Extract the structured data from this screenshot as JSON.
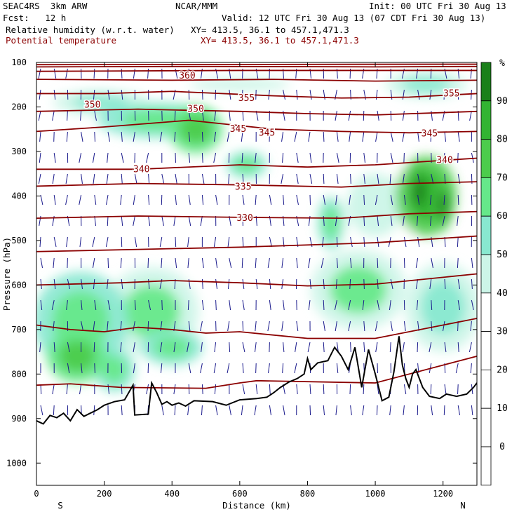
{
  "header": {
    "model": "SEAC4RS  3km ARW",
    "center": "NCAR/MMM",
    "init": "Init: 00 UTC Fri 30 Aug 13",
    "fcst": "Fcst:   12 h",
    "valid": "Valid: 12 UTC Fri 30 Aug 13 (07 CDT Fri 30 Aug 13)",
    "field1": "Relative humidity (w.r.t. water)",
    "field1_xy": "XY= 413.5, 36.1 to 457.1,471.3",
    "field2": "Potential temperature",
    "field2_xy": "XY= 413.5, 36.1 to 457.1,471.3"
  },
  "colors": {
    "theta": "#8b0000",
    "terrain": "#000000",
    "wind": "#1a1a8c",
    "rh_scale": [
      "#ffffff",
      "#ffffff",
      "#ffffff",
      "#ffffff",
      "#ccf5e8",
      "#88e8d0",
      "#66e88a",
      "#4ccc4c",
      "#32b432",
      "#1a801a"
    ]
  },
  "chart_data": {
    "type": "heatmap",
    "title": "Relative humidity (w.r.t. water) / Potential temperature",
    "xlabel": "Distance (km)",
    "ylabel": "Pressure (hPa)",
    "xlim": [
      0,
      1300
    ],
    "ylim": [
      1050,
      100
    ],
    "x_ticks": [
      0,
      200,
      400,
      600,
      800,
      1000,
      1200
    ],
    "y_ticks": [
      100,
      200,
      300,
      400,
      500,
      600,
      700,
      800,
      900,
      1000
    ],
    "x_end_labels": {
      "left": "S",
      "right": "N"
    },
    "colorbar": {
      "unit": "%",
      "ticks": [
        0,
        10,
        20,
        30,
        40,
        50,
        60,
        70,
        80,
        90
      ],
      "levels": [
        -10,
        0,
        10,
        20,
        30,
        40,
        50,
        60,
        70,
        80,
        90,
        100
      ]
    },
    "theta_labels": [
      {
        "value": "360",
        "x": 445,
        "p": 130
      },
      {
        "value": "355",
        "x": 620,
        "p": 180
      },
      {
        "value": "355",
        "x": 1225,
        "p": 170
      },
      {
        "value": "350",
        "x": 165,
        "p": 195
      },
      {
        "value": "350",
        "x": 470,
        "p": 205
      },
      {
        "value": "345",
        "x": 595,
        "p": 250
      },
      {
        "value": "345",
        "x": 680,
        "p": 258
      },
      {
        "value": "345",
        "x": 1160,
        "p": 260
      },
      {
        "value": "340",
        "x": 310,
        "p": 340
      },
      {
        "value": "340",
        "x": 1205,
        "p": 320
      },
      {
        "value": "335",
        "x": 610,
        "p": 380
      },
      {
        "value": "330",
        "x": 615,
        "p": 450
      }
    ],
    "theta_contours": [
      [
        [
          0,
          105
        ],
        [
          1300,
          104
        ]
      ],
      [
        [
          0,
          110
        ],
        [
          500,
          109
        ],
        [
          1000,
          110
        ],
        [
          1300,
          109
        ]
      ],
      [
        [
          0,
          120
        ],
        [
          600,
          118
        ],
        [
          1300,
          118
        ]
      ],
      [
        [
          0,
          138
        ],
        [
          400,
          140
        ],
        [
          700,
          138
        ],
        [
          1000,
          142
        ],
        [
          1300,
          140
        ]
      ],
      [
        [
          0,
          170
        ],
        [
          200,
          170
        ],
        [
          400,
          165
        ],
        [
          700,
          175
        ],
        [
          900,
          180
        ],
        [
          1100,
          178
        ],
        [
          1300,
          170
        ]
      ],
      [
        [
          0,
          210
        ],
        [
          300,
          205
        ],
        [
          600,
          210
        ],
        [
          800,
          215
        ],
        [
          1000,
          218
        ],
        [
          1300,
          210
        ]
      ],
      [
        [
          0,
          255
        ],
        [
          200,
          245
        ],
        [
          450,
          230
        ],
        [
          700,
          250
        ],
        [
          900,
          255
        ],
        [
          1100,
          258
        ],
        [
          1300,
          255
        ]
      ],
      [
        [
          0,
          340
        ],
        [
          300,
          340
        ],
        [
          600,
          330
        ],
        [
          800,
          335
        ],
        [
          1000,
          330
        ],
        [
          1300,
          315
        ]
      ],
      [
        [
          0,
          378
        ],
        [
          300,
          372
        ],
        [
          600,
          375
        ],
        [
          900,
          380
        ],
        [
          1100,
          372
        ],
        [
          1300,
          368
        ]
      ],
      [
        [
          0,
          450
        ],
        [
          300,
          445
        ],
        [
          600,
          448
        ],
        [
          900,
          450
        ],
        [
          1100,
          440
        ],
        [
          1300,
          435
        ]
      ],
      [
        [
          0,
          525
        ],
        [
          300,
          520
        ],
        [
          600,
          515
        ],
        [
          800,
          510
        ],
        [
          1000,
          505
        ],
        [
          1300,
          490
        ]
      ],
      [
        [
          0,
          600
        ],
        [
          250,
          595
        ],
        [
          400,
          590
        ],
        [
          600,
          595
        ],
        [
          800,
          602
        ],
        [
          1000,
          598
        ],
        [
          1300,
          575
        ]
      ],
      [
        [
          0,
          690
        ],
        [
          100,
          700
        ],
        [
          200,
          705
        ],
        [
          300,
          695
        ],
        [
          400,
          700
        ],
        [
          500,
          708
        ],
        [
          600,
          705
        ],
        [
          800,
          720
        ],
        [
          1000,
          720
        ],
        [
          1300,
          675
        ]
      ],
      [
        [
          0,
          825
        ],
        [
          100,
          822
        ],
        [
          250,
          830
        ],
        [
          500,
          832
        ],
        [
          600,
          820
        ],
        [
          650,
          815
        ],
        [
          1000,
          820
        ],
        [
          1100,
          800
        ],
        [
          1300,
          760
        ]
      ]
    ],
    "terrain": [
      [
        0,
        905
      ],
      [
        20,
        912
      ],
      [
        40,
        893
      ],
      [
        60,
        898
      ],
      [
        80,
        888
      ],
      [
        100,
        905
      ],
      [
        120,
        880
      ],
      [
        140,
        895
      ],
      [
        180,
        880
      ],
      [
        200,
        870
      ],
      [
        230,
        862
      ],
      [
        260,
        858
      ],
      [
        285,
        825
      ],
      [
        290,
        892
      ],
      [
        330,
        890
      ],
      [
        340,
        820
      ],
      [
        355,
        842
      ],
      [
        370,
        868
      ],
      [
        385,
        862
      ],
      [
        400,
        870
      ],
      [
        420,
        865
      ],
      [
        440,
        872
      ],
      [
        465,
        860
      ],
      [
        520,
        862
      ],
      [
        560,
        870
      ],
      [
        600,
        858
      ],
      [
        650,
        855
      ],
      [
        680,
        852
      ],
      [
        700,
        842
      ],
      [
        720,
        830
      ],
      [
        745,
        818
      ],
      [
        770,
        810
      ],
      [
        790,
        800
      ],
      [
        800,
        765
      ],
      [
        810,
        790
      ],
      [
        830,
        775
      ],
      [
        860,
        770
      ],
      [
        880,
        740
      ],
      [
        900,
        760
      ],
      [
        920,
        790
      ],
      [
        940,
        740
      ],
      [
        960,
        830
      ],
      [
        980,
        745
      ],
      [
        1000,
        800
      ],
      [
        1020,
        860
      ],
      [
        1040,
        852
      ],
      [
        1055,
        795
      ],
      [
        1070,
        715
      ],
      [
        1080,
        780
      ],
      [
        1090,
        810
      ],
      [
        1100,
        830
      ],
      [
        1110,
        800
      ],
      [
        1120,
        790
      ],
      [
        1140,
        830
      ],
      [
        1160,
        850
      ],
      [
        1190,
        855
      ],
      [
        1210,
        845
      ],
      [
        1240,
        850
      ],
      [
        1270,
        845
      ],
      [
        1290,
        830
      ],
      [
        1300,
        820
      ]
    ],
    "rh_blobs": [
      {
        "x": 130,
        "p": 680,
        "rx": 140,
        "rp": 110,
        "v": 62
      },
      {
        "x": 340,
        "p": 660,
        "rx": 140,
        "rp": 100,
        "v": 60
      },
      {
        "x": 530,
        "p": 630,
        "rx": 100,
        "rp": 60,
        "v": 38
      },
      {
        "x": 120,
        "p": 760,
        "rx": 90,
        "rp": 60,
        "v": 72
      },
      {
        "x": 230,
        "p": 790,
        "rx": 60,
        "rp": 50,
        "v": 65
      },
      {
        "x": 400,
        "p": 740,
        "rx": 90,
        "rp": 40,
        "v": 62
      },
      {
        "x": 360,
        "p": 230,
        "rx": 180,
        "rp": 40,
        "v": 62
      },
      {
        "x": 470,
        "p": 250,
        "rx": 80,
        "rp": 55,
        "v": 72
      },
      {
        "x": 190,
        "p": 190,
        "rx": 140,
        "rp": 28,
        "v": 55
      },
      {
        "x": 620,
        "p": 330,
        "rx": 60,
        "rp": 30,
        "v": 68
      },
      {
        "x": 870,
        "p": 460,
        "rx": 40,
        "rp": 60,
        "v": 62
      },
      {
        "x": 1000,
        "p": 420,
        "rx": 140,
        "rp": 120,
        "v": 48
      },
      {
        "x": 1150,
        "p": 400,
        "rx": 90,
        "rp": 90,
        "v": 82
      },
      {
        "x": 1130,
        "p": 390,
        "rx": 30,
        "rp": 55,
        "v": 92
      },
      {
        "x": 1200,
        "p": 420,
        "rx": 25,
        "rp": 60,
        "v": 90
      },
      {
        "x": 950,
        "p": 610,
        "rx": 140,
        "rp": 90,
        "v": 60
      },
      {
        "x": 1200,
        "p": 650,
        "rx": 110,
        "rp": 100,
        "v": 58
      },
      {
        "x": 600,
        "p": 150,
        "rx": 250,
        "rp": 25,
        "v": 42
      },
      {
        "x": 1150,
        "p": 150,
        "rx": 120,
        "rp": 30,
        "v": 55
      }
    ]
  }
}
